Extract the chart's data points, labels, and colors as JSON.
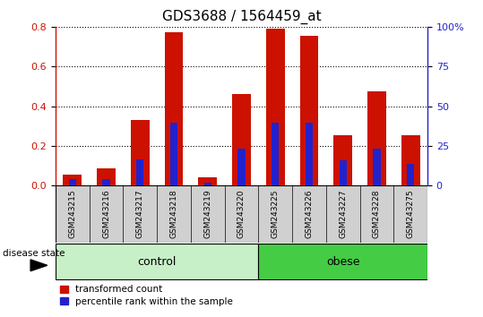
{
  "title": "GDS3688 / 1564459_at",
  "samples": [
    "GSM243215",
    "GSM243216",
    "GSM243217",
    "GSM243218",
    "GSM243219",
    "GSM243220",
    "GSM243225",
    "GSM243226",
    "GSM243227",
    "GSM243228",
    "GSM243275"
  ],
  "red_values": [
    0.055,
    0.085,
    0.33,
    0.775,
    0.04,
    0.46,
    0.79,
    0.755,
    0.255,
    0.475,
    0.255
  ],
  "blue_values": [
    0.03,
    0.03,
    0.13,
    0.315,
    0.015,
    0.185,
    0.315,
    0.315,
    0.125,
    0.185,
    0.11
  ],
  "groups": [
    "control",
    "control",
    "control",
    "control",
    "control",
    "control",
    "obese",
    "obese",
    "obese",
    "obese",
    "obese"
  ],
  "control_color_light": "#c8f0c8",
  "control_color_dark": "#44cc44",
  "obese_color": "#44cc44",
  "bar_color_red": "#cc1100",
  "bar_color_blue": "#2222cc",
  "left_ylim": [
    0,
    0.8
  ],
  "right_ylim": [
    0,
    100
  ],
  "left_yticks": [
    0.0,
    0.2,
    0.4,
    0.6,
    0.8
  ],
  "right_yticks": [
    0,
    25,
    50,
    75,
    100
  ],
  "right_yticklabels": [
    "0",
    "25",
    "50",
    "75",
    "100%"
  ],
  "bar_width": 0.55,
  "blue_bar_width": 0.22,
  "sample_area_color": "#d0d0d0",
  "legend_labels": [
    "transformed count",
    "percentile rank within the sample"
  ],
  "legend_colors": [
    "#cc1100",
    "#2222cc"
  ],
  "disease_state_label": "disease state"
}
